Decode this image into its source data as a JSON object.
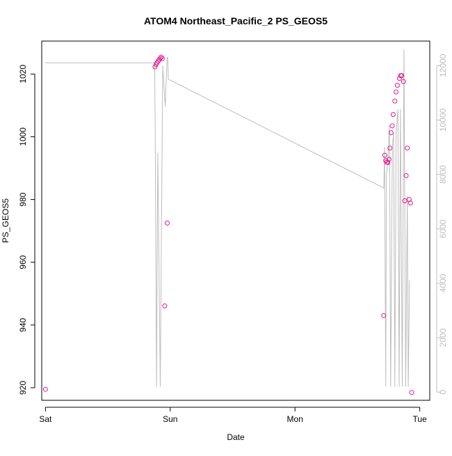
{
  "chart_data": {
    "type": "scatter",
    "title": "ATOM4 Northeast_Pacific_2 PS_GEOS5",
    "xlabel": "Date",
    "ylabel": "PS_GEOS5",
    "x_unit": "days since Sat 00:00",
    "xlim": [
      -0.03,
      3.08
    ],
    "ylim": [
      916,
      1030.5
    ],
    "y2lim": [
      -300,
      12900
    ],
    "x_ticks": [
      {
        "value": 0,
        "label": "Sat"
      },
      {
        "value": 1,
        "label": "Sun"
      },
      {
        "value": 2,
        "label": "Mon"
      },
      {
        "value": 3,
        "label": "Tue"
      }
    ],
    "y_ticks": [
      920,
      940,
      960,
      980,
      1000,
      1020
    ],
    "y2_ticks": [
      0,
      2000,
      4000,
      6000,
      8000,
      10000,
      12000
    ],
    "colors": {
      "points": "#e8178c",
      "line": "#bdbdbd",
      "axis": "#000000",
      "axis2": "#bdbdbd"
    },
    "series": [
      {
        "kind": "points",
        "axis": "left",
        "x": [
          0.0,
          0.878,
          0.886,
          0.894,
          0.903,
          0.911,
          0.919,
          0.928,
          0.937,
          0.956,
          0.976,
          2.711,
          2.72,
          2.727,
          2.736,
          2.745,
          2.753,
          2.761,
          2.77,
          2.779,
          2.787,
          2.8,
          2.81,
          2.82,
          2.837,
          2.847,
          2.855,
          2.87,
          2.88,
          2.891,
          2.9,
          2.915,
          2.925,
          2.935
        ],
        "y": [
          919.5,
          1022.3,
          1023.0,
          1023.6,
          1024.1,
          1024.5,
          1025.0,
          1025.4,
          1024.9,
          946.1,
          972.5,
          943.0,
          994.1,
          992.4,
          991.9,
          991.8,
          992.8,
          996.4,
          1001.3,
          1003.5,
          1007.1,
          1011.4,
          1014.3,
          1016.4,
          1018.6,
          1019.5,
          1019.5,
          1017.6,
          979.6,
          987.6,
          996.4,
          980.0,
          978.9,
          918.5
        ]
      },
      {
        "kind": "line",
        "axis": "right",
        "x": [
          0.0,
          0.875,
          0.88,
          0.89,
          0.9,
          0.92,
          0.94,
          0.96,
          0.975,
          0.98,
          0.985,
          2.712,
          2.718,
          2.727,
          2.733,
          2.745,
          2.757,
          2.767,
          2.78,
          2.79,
          2.8,
          2.81,
          2.825,
          2.835,
          2.845,
          2.86,
          2.873,
          2.887,
          2.9,
          2.908,
          2.917,
          2.92
        ],
        "y": [
          12100,
          12100,
          9300,
          200,
          8800,
          200,
          12000,
          10500,
          12300,
          12300,
          11500,
          7500,
          9000,
          200,
          8000,
          8500,
          9800,
          200,
          9000,
          9500,
          200,
          9500,
          10400,
          200,
          10400,
          200,
          12600,
          200,
          7200,
          200,
          4100,
          4100
        ]
      }
    ]
  }
}
